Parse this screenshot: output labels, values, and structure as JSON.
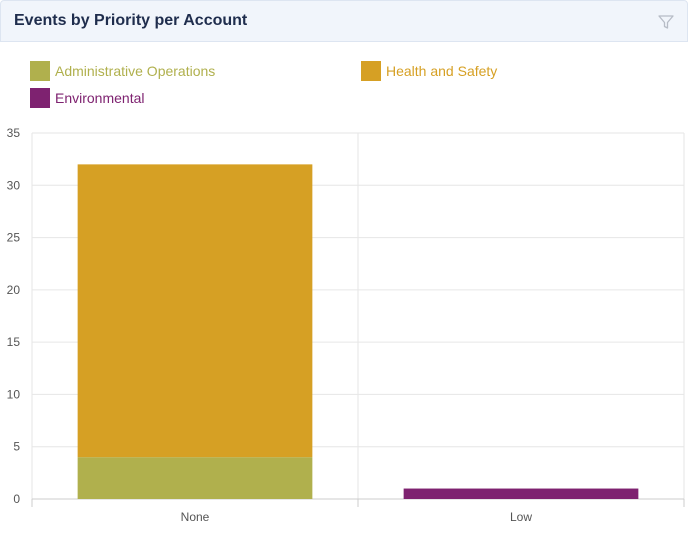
{
  "header": {
    "title": "Events by Priority per Account",
    "filter_icon": "filter-icon"
  },
  "colors": {
    "administrative_operations": "#b0b04d",
    "health_and_safety": "#d6a024",
    "environmental": "#7e2270",
    "gridline": "#e6e6e6",
    "axis": "#cccccc",
    "tick_text": "#555555"
  },
  "chart_data": {
    "type": "bar",
    "stacked": true,
    "categories": [
      "None",
      "Low"
    ],
    "series": [
      {
        "name": "Administrative Operations",
        "values": [
          4,
          0
        ]
      },
      {
        "name": "Health and Safety",
        "values": [
          28,
          0
        ]
      },
      {
        "name": "Environmental",
        "values": [
          0,
          1
        ]
      }
    ],
    "ylim": [
      0,
      35
    ],
    "yticks": [
      0,
      5,
      10,
      15,
      20,
      25,
      30,
      35
    ],
    "grid": true,
    "legend_position": "top-left"
  }
}
